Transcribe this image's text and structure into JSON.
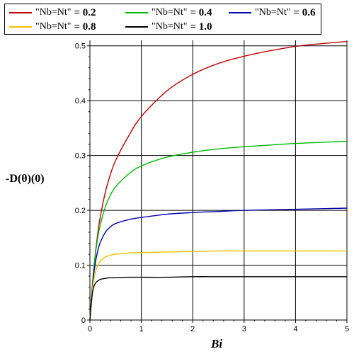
{
  "chart_data": {
    "type": "line",
    "title": "",
    "xlabel": "Bi",
    "ylabel": "-D(θ)(0)",
    "xlim": [
      0,
      5
    ],
    "ylim": [
      0,
      0.51
    ],
    "x_ticks": [
      "0",
      "1",
      "2",
      "3",
      "4",
      "5"
    ],
    "y_ticks": [
      "0",
      "0.1",
      "0.2",
      "0.3",
      "0.4",
      "0.5"
    ],
    "grid": true,
    "legend_position": "top",
    "x": [
      0,
      0.05,
      0.1,
      0.15,
      0.2,
      0.3,
      0.4,
      0.5,
      0.75,
      1.0,
      1.5,
      2.0,
      2.5,
      3.0,
      3.5,
      4.0,
      4.5,
      5.0
    ],
    "series": [
      {
        "name": "\"Nb=Nt\" = 0.2",
        "legend_label": "\"Nb=Nt\"",
        "legend_value": "0.2",
        "color": "#c00000",
        "values": [
          0,
          0.065,
          0.116,
          0.156,
          0.187,
          0.233,
          0.266,
          0.291,
          0.335,
          0.371,
          0.418,
          0.448,
          0.468,
          0.481,
          0.491,
          0.499,
          0.504,
          0.508
        ]
      },
      {
        "name": "\"Nb=Nt\" = 0.4",
        "legend_label": "\"Nb=Nt\"",
        "legend_value": "0.4",
        "color": "#00bb00",
        "values": [
          0,
          0.067,
          0.115,
          0.149,
          0.173,
          0.206,
          0.228,
          0.243,
          0.266,
          0.281,
          0.297,
          0.306,
          0.312,
          0.316,
          0.319,
          0.322,
          0.324,
          0.326
        ]
      },
      {
        "name": "\"Nb=Nt\" = 0.6",
        "legend_label": "\"Nb=Nt\"",
        "legend_value": "0.6",
        "color": "#0000aa",
        "values": [
          0,
          0.062,
          0.101,
          0.125,
          0.141,
          0.16,
          0.17,
          0.176,
          0.183,
          0.187,
          0.193,
          0.196,
          0.198,
          0.2,
          0.201,
          0.202,
          0.203,
          0.204
        ]
      },
      {
        "name": "\"Nb=Nt\" = 0.8",
        "legend_label": "\"Nb=Nt\"",
        "legend_value": "0.8",
        "color": "#f2c200",
        "values": [
          0,
          0.058,
          0.085,
          0.099,
          0.107,
          0.115,
          0.118,
          0.12,
          0.122,
          0.123,
          0.124,
          0.125,
          0.126,
          0.126,
          0.126,
          0.126,
          0.126,
          0.126
        ]
      },
      {
        "name": "\"Nb=Nt\" = 1.0",
        "legend_label": "\"Nb=Nt\"",
        "legend_value": "1.0",
        "color": "#000000",
        "values": [
          0,
          0.05,
          0.066,
          0.071,
          0.074,
          0.076,
          0.077,
          0.077,
          0.078,
          0.078,
          0.078,
          0.079,
          0.079,
          0.079,
          0.079,
          0.079,
          0.079,
          0.079
        ]
      }
    ]
  }
}
